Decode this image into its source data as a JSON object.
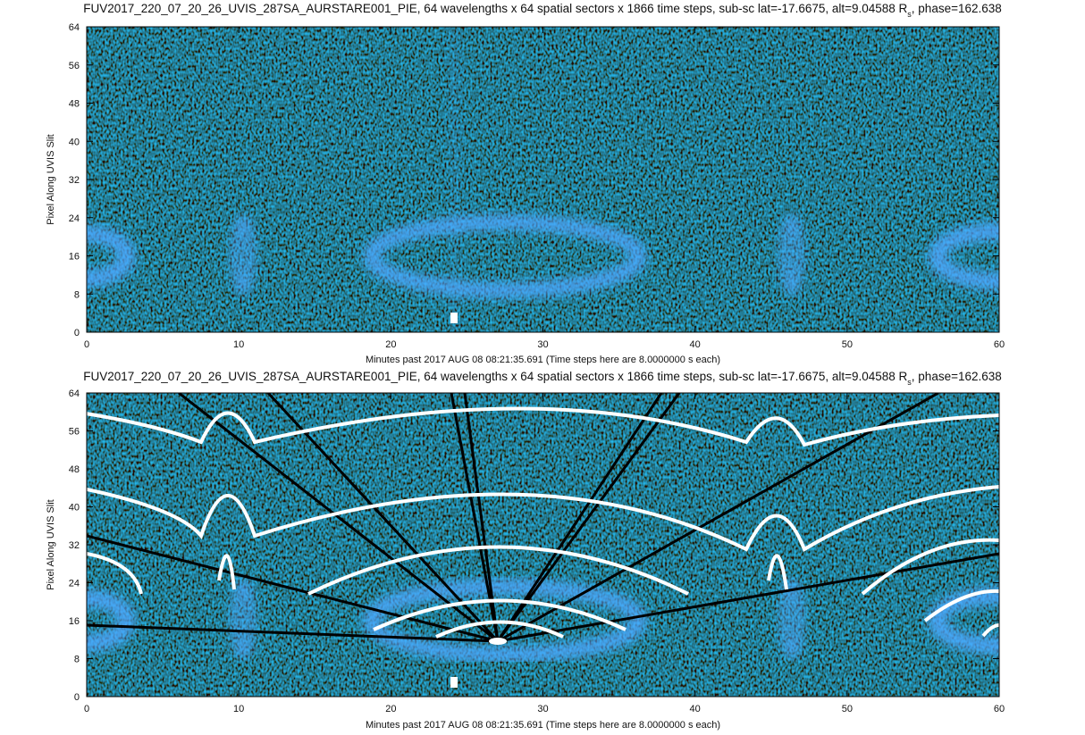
{
  "chart_data": [
    {
      "type": "image",
      "title": [
        "FUV2017_220_07_20_26_UVIS_287SA_AURSTARE001_PIE, 64 wavelengths x 64 spatial sectors x 1866 time steps, sub-sc lat=-17.6675, alt=9.04588 R",
        "s",
        ", phase=162.638"
      ],
      "xlabel": "Minutes past 2017 AUG 08 08:21:35.691 (Time steps here are 8.0000000 s each)",
      "ylabel": "Pixel Along UVIS Slit",
      "xlim": [
        0,
        60
      ],
      "ylim": [
        0,
        64
      ],
      "xticks": [
        0,
        10,
        20,
        30,
        40,
        50,
        60
      ],
      "yticks": [
        0,
        8,
        16,
        24,
        32,
        40,
        48,
        56,
        64
      ]
    },
    {
      "type": "image",
      "title": [
        "FUV2017_220_07_20_26_UVIS_287SA_AURSTARE001_PIE, 64 wavelengths x 64 spatial sectors x 1866 time steps, sub-sc lat=-17.6675, alt=9.04588 R",
        "s",
        ", phase=162.638"
      ],
      "xlabel": "Minutes past 2017 AUG 08 08:21:35.691 (Time steps here are 8.0000000 s each)",
      "ylabel": "Pixel Along UVIS Slit",
      "xlim": [
        0,
        60
      ],
      "ylim": [
        0,
        64
      ],
      "xticks": [
        0,
        10,
        20,
        30,
        40,
        50,
        60
      ],
      "yticks": [
        0,
        8,
        16,
        24,
        32,
        40,
        48,
        56,
        64
      ]
    }
  ]
}
